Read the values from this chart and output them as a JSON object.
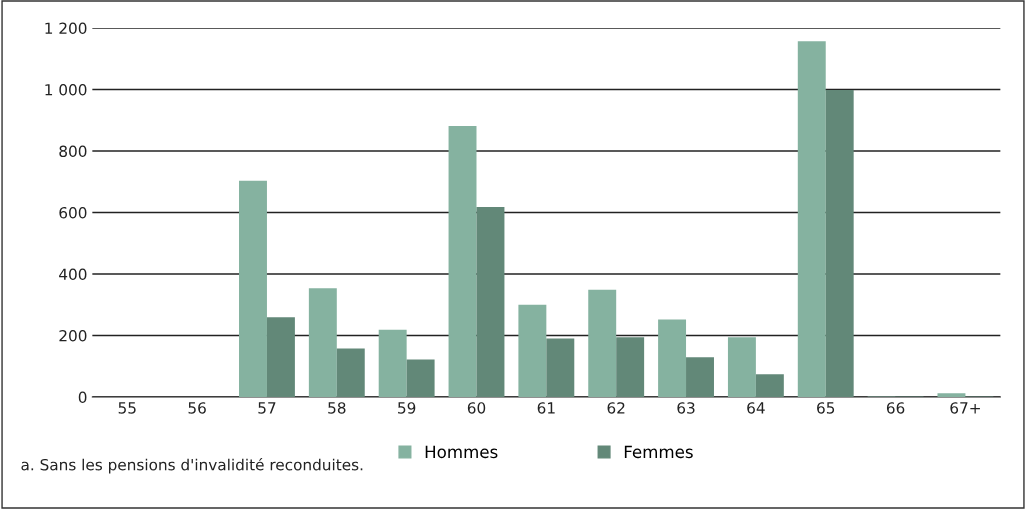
{
  "chart_data": {
    "type": "bar",
    "categories": [
      "55",
      "56",
      "57",
      "58",
      "59",
      "60",
      "61",
      "62",
      "63",
      "64",
      "65",
      "66",
      "67+"
    ],
    "series": [
      {
        "name": "Hommes",
        "color": "#85b2a0",
        "values": [
          0,
          0,
          703,
          354,
          219,
          881,
          300,
          349,
          252,
          194,
          1157,
          2,
          12
        ]
      },
      {
        "name": "Femmes",
        "color": "#628878",
        "values": [
          0,
          0,
          259,
          158,
          122,
          618,
          190,
          194,
          129,
          74,
          998,
          2,
          2
        ]
      }
    ],
    "ylim": [
      0,
      1200
    ],
    "yticks": [
      0,
      {
        "value": 200,
        "label": "200"
      },
      400,
      600,
      800,
      {
        "value": 1000,
        "label": "1 000"
      },
      {
        "value": 1200,
        "label": "1 200"
      }
    ],
    "grid": "y",
    "legend": "bottom",
    "annotations": [
      "a. Sans les pensions d'invalidité reconduites."
    ]
  }
}
